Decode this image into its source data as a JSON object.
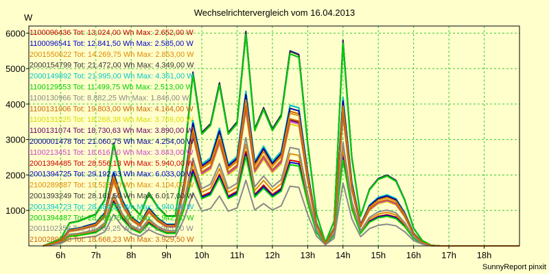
{
  "chart_data": {
    "type": "line",
    "title": "Wechselrichtervergleich vom 16.04.2013",
    "ylabel": "W",
    "footer": "SunnyReport pinxit",
    "x_ticks": [
      "6h",
      "7h",
      "8h",
      "9h",
      "10h",
      "11h",
      "12h",
      "13h",
      "14h",
      "15h",
      "16h",
      "17h",
      "18h"
    ],
    "y_ticks": [
      "1000",
      "2000",
      "3000",
      "4000",
      "5000",
      "6000"
    ],
    "xlim": [
      5.1,
      19.0
    ],
    "ylim": [
      0,
      6200
    ],
    "grid": true,
    "legend_position": "top-left",
    "x": [
      5.5,
      6.0,
      6.25,
      6.5,
      7.0,
      7.25,
      7.5,
      7.75,
      8.0,
      8.25,
      8.5,
      8.75,
      9.0,
      9.25,
      9.5,
      9.75,
      10.0,
      10.25,
      10.5,
      10.75,
      11.0,
      11.25,
      11.5,
      11.75,
      12.0,
      12.25,
      12.5,
      12.75,
      13.0,
      13.25,
      13.5,
      13.75,
      14.0,
      14.25,
      14.5,
      14.75,
      15.0,
      15.25,
      15.5,
      15.75,
      16.0,
      16.25,
      16.5,
      16.75,
      17.0,
      17.5,
      18.0,
      18.5,
      19.0
    ],
    "base_profile": [
      0,
      200,
      650,
      700,
      900,
      1300,
      2900,
      1800,
      1150,
      880,
      1500,
      1100,
      850,
      850,
      2500,
      4900,
      3200,
      3450,
      4600,
      3200,
      3500,
      6050,
      3300,
      3900,
      3300,
      3700,
      5500,
      5400,
      2900,
      900,
      100,
      700,
      5800,
      2500,
      850,
      1600,
      1900,
      2000,
      1850,
      1300,
      500,
      150,
      20,
      0,
      0,
      0,
      0,
      0,
      0
    ],
    "series": [
      {
        "name": "1100096436",
        "total": "13.024,00 Wh",
        "max": "2.652,00 W",
        "color": "#cc0000"
      },
      {
        "name": "1100096541",
        "total": "12.841,50 Wh",
        "max": "2.585,00 W",
        "color": "#0000cc"
      },
      {
        "name": "2001550622",
        "total": "14.269,75 Wh",
        "max": "2.853,00 W",
        "color": "#e08a00"
      },
      {
        "name": "2000154799",
        "total": "21.472,00 Wh",
        "max": "4.349,00 W",
        "color": "#333333"
      },
      {
        "name": "2000149892",
        "total": "21.995,00 Wh",
        "max": "4.351,00 W",
        "color": "#00c8c8"
      },
      {
        "name": "1100129553",
        "total": "11.499,75 Wh",
        "max": "2.513,00 W",
        "color": "#00cc00"
      },
      {
        "name": "1100130966",
        "total": "8.882,25 Wh",
        "max": "1.846,00 W",
        "color": "#888888"
      },
      {
        "name": "1100131006",
        "total": "19.803,00 Wh",
        "max": "4.164,00 W",
        "color": "#cc6600"
      },
      {
        "name": "1100131025",
        "total": "18.268,38 Wh",
        "max": "3.769,00 W",
        "color": "#d8d800"
      },
      {
        "name": "1100131074",
        "total": "18.730,63 Wh",
        "max": "3.890,00 W",
        "color": "#660066"
      },
      {
        "name": "2000001478",
        "total": "21.060,75 Wh",
        "max": "4.254,00 W",
        "color": "#000099"
      },
      {
        "name": "1100213451",
        "total": "18.616,00 Wh",
        "max": "3.843,00 W",
        "color": "#cc44cc"
      },
      {
        "name": "2001394485",
        "total": "28.556,13 Wh",
        "max": "5.940,00 W",
        "color": "#cc0000"
      },
      {
        "name": "2001394725",
        "total": "29.192,63 Wh",
        "max": "6.033,00 W",
        "color": "#0000cc"
      },
      {
        "name": "2100289887",
        "total": "19.523,50 Wh",
        "max": "4.104,00 W",
        "color": "#e08a00"
      },
      {
        "name": "2001393249",
        "total": "28.161,50 Wh",
        "max": "6.017,00 W",
        "color": "#333333"
      },
      {
        "name": "2001394723",
        "total": "28.484,25 Wh",
        "max": "5.940,00 W",
        "color": "#00c8c8"
      },
      {
        "name": "2001394487",
        "total": "28.490,75 Wh",
        "max": "5.942,00 W",
        "color": "#00cc00"
      },
      {
        "name": "2001102358",
        "total": "14.469,25 Wh",
        "max": "3.045,00 W",
        "color": "#888888"
      },
      {
        "name": "2100289888",
        "total": "18.668,23 Wh",
        "max": "3.929,50 W",
        "color": "#cc6600"
      }
    ]
  }
}
